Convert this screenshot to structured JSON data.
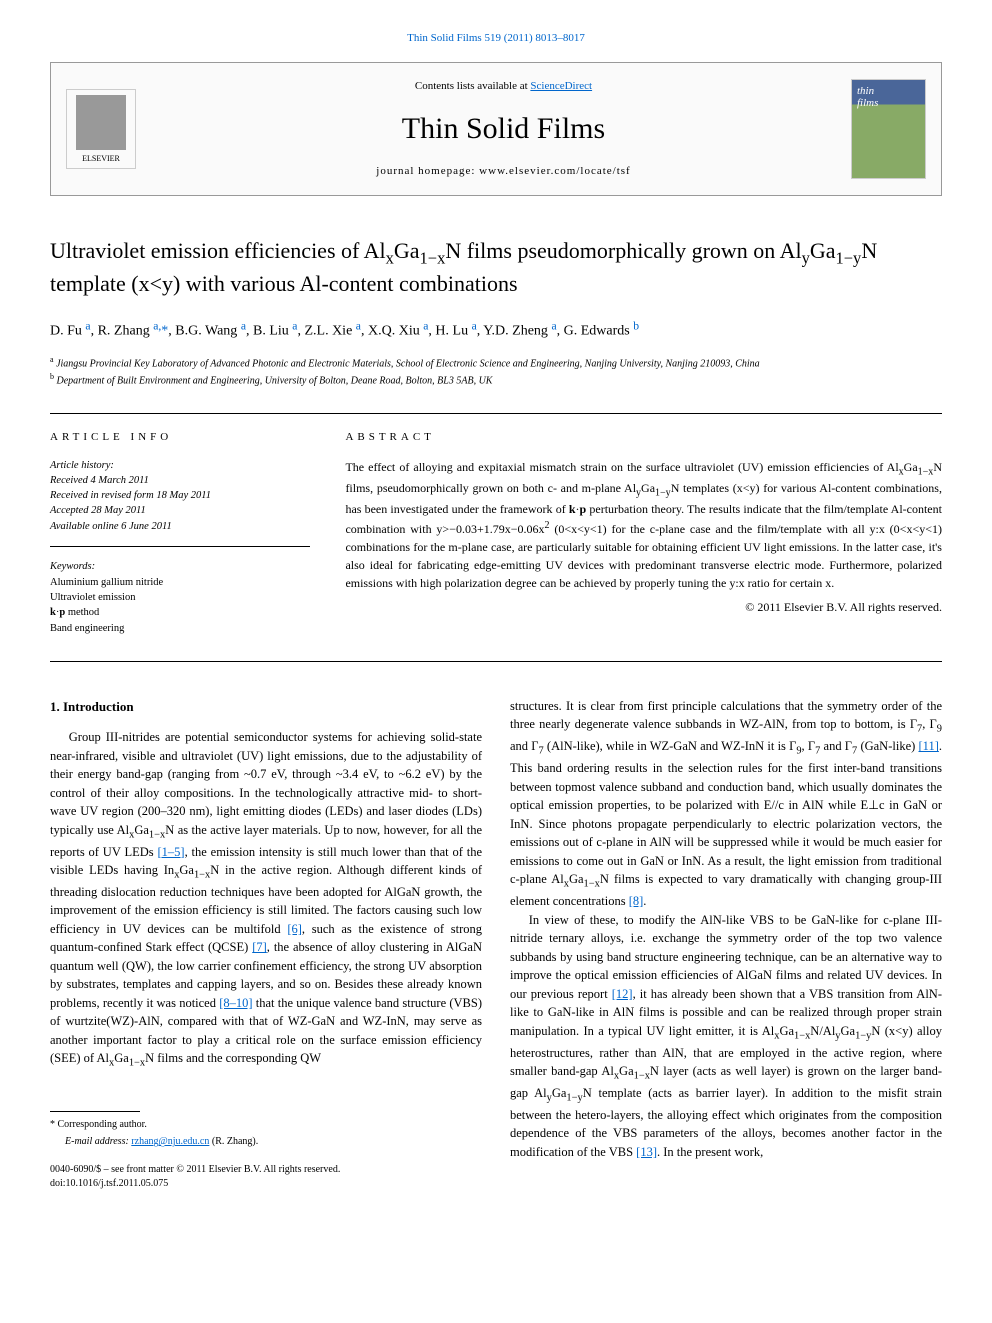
{
  "header": {
    "top_link": "Thin Solid Films 519 (2011) 8013–8017",
    "contents_prefix": "Contents lists available at ",
    "contents_link": "ScienceDirect",
    "journal_name": "Thin Solid Films",
    "homepage_label": "journal homepage: www.elsevier.com/locate/tsf",
    "elsevier_label": "ELSEVIER"
  },
  "title": "Ultraviolet emission efficiencies of AlₓGa₁₋ₓN films pseudomorphically grown on AlᵧGa₁₋ᵧN template (x<y) with various Al-content combinations",
  "authors_html": "D. Fu <a href='#'><sup>a</sup></a>, R. Zhang <a href='#'><sup>a,</sup></a><a href='#'>*</a>, B.G. Wang <a href='#'><sup>a</sup></a>, B. Liu <a href='#'><sup>a</sup></a>, Z.L. Xie <a href='#'><sup>a</sup></a>, X.Q. Xiu <a href='#'><sup>a</sup></a>, H. Lu <a href='#'><sup>a</sup></a>, Y.D. Zheng <a href='#'><sup>a</sup></a>, G. Edwards <a href='#'><sup>b</sup></a>",
  "affiliations": [
    {
      "sup": "a",
      "text": "Jiangsu Provincial Key Laboratory of Advanced Photonic and Electronic Materials, School of Electronic Science and Engineering, Nanjing University, Nanjing 210093, China"
    },
    {
      "sup": "b",
      "text": "Department of Built Environment and Engineering, University of Bolton, Deane Road, Bolton, BL3 5AB, UK"
    }
  ],
  "article_info": {
    "heading": "ARTICLE INFO",
    "history_label": "Article history:",
    "history": [
      "Received 4 March 2011",
      "Received in revised form 18 May 2011",
      "Accepted 28 May 2011",
      "Available online 6 June 2011"
    ],
    "keywords_label": "Keywords:",
    "keywords": [
      "Aluminium gallium nitride",
      "Ultraviolet emission",
      "k·p method",
      "Band engineering"
    ]
  },
  "abstract": {
    "heading": "ABSTRACT",
    "text": "The effect of alloying and expitaxial mismatch strain on the surface ultraviolet (UV) emission efficiencies of AlₓGa₁₋ₓN films, pseudomorphically grown on both c- and m-plane AlᵧGa₁₋ᵧN templates (x<y) for various Al-content combinations, has been investigated under the framework of k·p perturbation theory. The results indicate that the film/template Al-content combination with y>−0.03+1.79x−0.06x² (0<x<y<1) for the c-plane case and the film/template with all y:x (0<x<y<1) combinations for the m-plane case, are particularly suitable for obtaining efficient UV light emissions. In the latter case, it's also ideal for fabricating edge-emitting UV devices with predominant transverse electric mode. Furthermore, polarized emissions with high polarization degree can be achieved by properly tuning the y:x ratio for certain x.",
    "copyright": "© 2011 Elsevier B.V. All rights reserved."
  },
  "body": {
    "section_heading": "1. Introduction",
    "col1_p1": "Group III-nitrides are potential semiconductor systems for achieving solid-state near-infrared, visible and ultraviolet (UV) light emissions, due to the adjustability of their energy band-gap (ranging from ~0.7 eV, through ~3.4 eV, to ~6.2 eV) by the control of their alloy compositions. In the technologically attractive mid- to short-wave UV region (200–320 nm), light emitting diodes (LEDs) and laser diodes (LDs) typically use AlₓGa₁₋ₓN as the active layer materials. Up to now, however, for all the reports of UV LEDs [1–5], the emission intensity is still much lower than that of the visible LEDs having InₓGa₁₋ₓN in the active region. Although different kinds of threading dislocation reduction techniques have been adopted for AlGaN growth, the improvement of the emission efficiency is still limited. The factors causing such low efficiency in UV devices can be multifold [6], such as the existence of strong quantum-confined Stark effect (QCSE) [7], the absence of alloy clustering in AlGaN quantum well (QW), the low carrier confinement efficiency, the strong UV absorption by substrates, templates and capping layers, and so on. Besides these already known problems, recently it was noticed [8–10] that the unique valence band structure (VBS) of wurtzite(WZ)-AlN, compared with that of WZ-GaN and WZ-InN, may serve as another important factor to play a critical role on the surface emission efficiency (SEE) of AlₓGa₁₋ₓN films and the corresponding QW",
    "col2_p1": "structures. It is clear from first principle calculations that the symmetry order of the three nearly degenerate valence subbands in WZ-AlN, from top to bottom, is Γ₇, Γ₉ and Γ₇ (AlN-like), while in WZ-GaN and WZ-InN it is Γ₉, Γ₇ and Γ₇ (GaN-like) [11]. This band ordering results in the selection rules for the first inter-band transitions between topmost valence subband and conduction band, which usually dominates the optical emission properties, to be polarized with E//c in AlN while E⊥c in GaN or InN. Since photons propagate perpendicularly to electric polarization vectors, the emissions out of c-plane in AlN will be suppressed while it would be much easier for emissions to come out in GaN or InN. As a result, the light emission from traditional c-plane AlₓGa₁₋ₓN films is expected to vary dramatically with changing group-III element concentrations [8].",
    "col2_p2": "In view of these, to modify the AlN-like VBS to be GaN-like for c-plane III-nitride ternary alloys, i.e. exchange the symmetry order of the top two valence subbands by using band structure engineering technique, can be an alternative way to improve the optical emission efficiencies of AlGaN films and related UV devices. In our previous report [12], it has already been shown that a VBS transition from AlN-like to GaN-like in AlN films is possible and can be realized through proper strain manipulation. In a typical UV light emitter, it is AlₓGa₁₋ₓN/AlᵧGa₁₋ᵧN (x<y) alloy heterostructures, rather than AlN, that are employed in the active region, where smaller band-gap AlₓGa₁₋ₓN layer (acts as well layer) is grown on the larger band-gap AlᵧGa₁₋ᵧN template (acts as barrier layer). In addition to the misfit strain between the hetero-layers, the alloying effect which originates from the composition dependence of the VBS parameters of the alloys, becomes another factor in the modification of the VBS [13]. In the present work,"
  },
  "footer": {
    "corresponding": "* Corresponding author.",
    "email_label": "E-mail address: ",
    "email": "rzhang@nju.edu.cn",
    "email_suffix": " (R. Zhang).",
    "copyright1": "0040-6090/$ – see front matter © 2011 Elsevier B.V. All rights reserved.",
    "doi": "doi:10.1016/j.tsf.2011.05.075"
  },
  "refs": {
    "r1_5": "[1–5]",
    "r6": "[6]",
    "r7": "[7]",
    "r8_10": "[8–10]",
    "r11": "[11]",
    "r8": "[8]",
    "r12": "[12]",
    "r13": "[13]"
  },
  "colors": {
    "link": "#0066cc",
    "text": "#000000",
    "bg": "#ffffff",
    "border": "#000000"
  }
}
